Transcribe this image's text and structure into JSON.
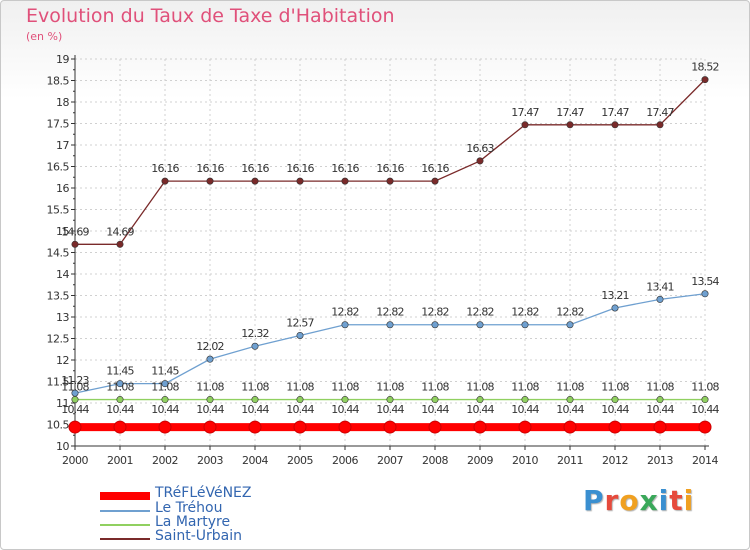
{
  "title": "Evolution du Taux de Taxe d'Habitation",
  "subtitle": "(en %)",
  "logo": "Proxiti",
  "chart_data": {
    "type": "line",
    "x": [
      2000,
      2001,
      2002,
      2003,
      2004,
      2005,
      2006,
      2007,
      2008,
      2009,
      2010,
      2011,
      2012,
      2013,
      2014
    ],
    "ylim": [
      10,
      19
    ],
    "yticks": [
      "10",
      "10.5",
      "11",
      "11.5",
      "12",
      "12.5",
      "13",
      "13.5",
      "14",
      "14.5",
      "15",
      "15.5",
      "16",
      "16.5",
      "17",
      "17.5",
      "18",
      "18.5",
      "19"
    ],
    "legend_position": "bottom-left",
    "series": [
      {
        "name": "TRéFLéVéNEZ",
        "color": "#ff0000",
        "values": [
          10.44,
          10.44,
          10.44,
          10.44,
          10.44,
          10.44,
          10.44,
          10.44,
          10.44,
          10.44,
          10.44,
          10.44,
          10.44,
          10.44,
          10.44
        ],
        "labels": [
          "10.44",
          "10.44",
          "10.44",
          "10.44",
          "10.44",
          "10.44",
          "10.44",
          "10.44",
          "10.44",
          "10.44",
          "10.44",
          "10.44",
          "10.44",
          "10.44",
          "10.44"
        ]
      },
      {
        "name": "Le Tréhou",
        "color": "#6fa0d0",
        "values": [
          11.23,
          11.45,
          11.45,
          12.02,
          12.32,
          12.57,
          12.82,
          12.82,
          12.82,
          12.82,
          12.82,
          12.82,
          13.21,
          13.41,
          13.54
        ],
        "labels": [
          "11.23",
          "11.45",
          "11.45",
          "12.02",
          "12.32",
          "12.57",
          "12.82",
          "12.82",
          "12.82",
          "12.82",
          "12.82",
          "12.82",
          "13.21",
          "13.41",
          "13.54"
        ]
      },
      {
        "name": "La Martyre",
        "color": "#90d060",
        "values": [
          11.08,
          11.08,
          11.08,
          11.08,
          11.08,
          11.08,
          11.08,
          11.08,
          11.08,
          11.08,
          11.08,
          11.08,
          11.08,
          11.08,
          11.08
        ],
        "labels": [
          "11.08",
          "11.08",
          "11.08",
          "11.08",
          "11.08",
          "11.08",
          "11.08",
          "11.08",
          "11.08",
          "11.08",
          "11.08",
          "11.08",
          "11.08",
          "11.08",
          "11.08"
        ]
      },
      {
        "name": "Saint-Urbain",
        "color": "#7a2a2a",
        "values": [
          14.69,
          14.69,
          16.16,
          16.16,
          16.16,
          16.16,
          16.16,
          16.16,
          16.16,
          16.63,
          17.47,
          17.47,
          17.47,
          17.47,
          18.52
        ],
        "labels": [
          "14.69",
          "14.69",
          "16.16",
          "16.16",
          "16.16",
          "16.16",
          "16.16",
          "16.16",
          "16.16",
          "16.63",
          "17.47",
          "17.47",
          "17.47",
          "17.47",
          "18.52"
        ]
      }
    ]
  }
}
